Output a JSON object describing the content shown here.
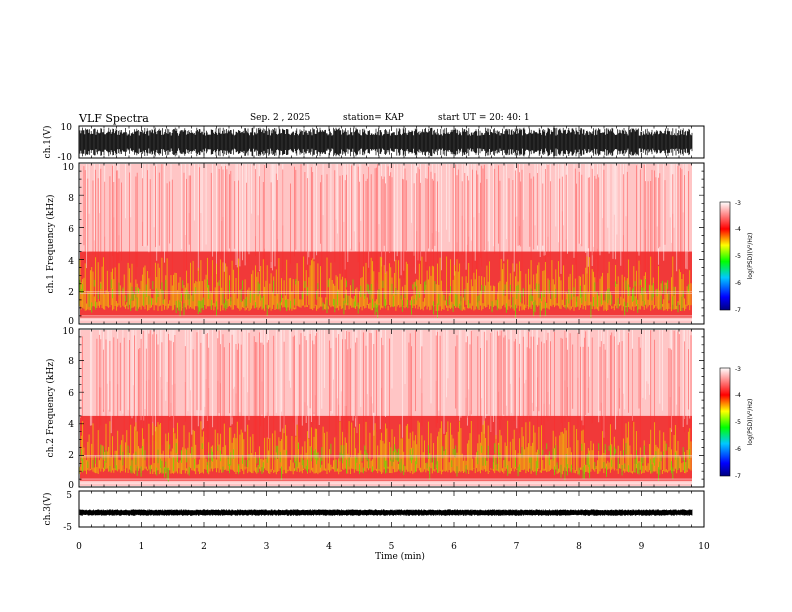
{
  "header": {
    "title": "VLF Spectra",
    "date": "Sep. 2 , 2025",
    "station": "station= KAP",
    "start": "start UT =  20: 40: 1"
  },
  "chart_data": [
    {
      "type": "line",
      "panel": "ch1-waveform",
      "ylabel": "ch.1(V)",
      "ylim": [
        -10,
        10
      ],
      "yticks": [
        "10",
        "-10"
      ],
      "description": "dense oscillating waveform filling roughly -9 to 9 V"
    },
    {
      "type": "heatmap",
      "panel": "ch1-spectrogram",
      "ylabel": "ch.1 Frequency (kHz)",
      "ylim": [
        0,
        10
      ],
      "yticks": [
        "0",
        "2",
        "4",
        "6",
        "8",
        "10"
      ],
      "xlim": [
        0,
        10
      ]
    },
    {
      "type": "heatmap",
      "panel": "ch2-spectrogram",
      "ylabel": "ch.2 Frequency (kHz)",
      "ylim": [
        0,
        10
      ],
      "yticks": [
        "0",
        "2",
        "4",
        "6",
        "8",
        "10"
      ],
      "xlim": [
        0,
        10
      ]
    },
    {
      "type": "line",
      "panel": "ch3-waveform",
      "ylabel": "ch.3(V)",
      "ylim": [
        -5,
        5
      ],
      "yticks": [
        "5",
        "-5"
      ],
      "xlabel": "Time (min)",
      "xlim": [
        0,
        10
      ],
      "xticks": [
        "0",
        "1",
        "2",
        "3",
        "4",
        "5",
        "6",
        "7",
        "8",
        "9",
        "10"
      ],
      "description": "narrow band near -1 V"
    }
  ],
  "colorbar": {
    "label": "log(PSD)(V²/Hz)",
    "range": [
      -7,
      -3
    ],
    "ticks": [
      "-3",
      "-4",
      "-5",
      "-6",
      "-7"
    ]
  }
}
